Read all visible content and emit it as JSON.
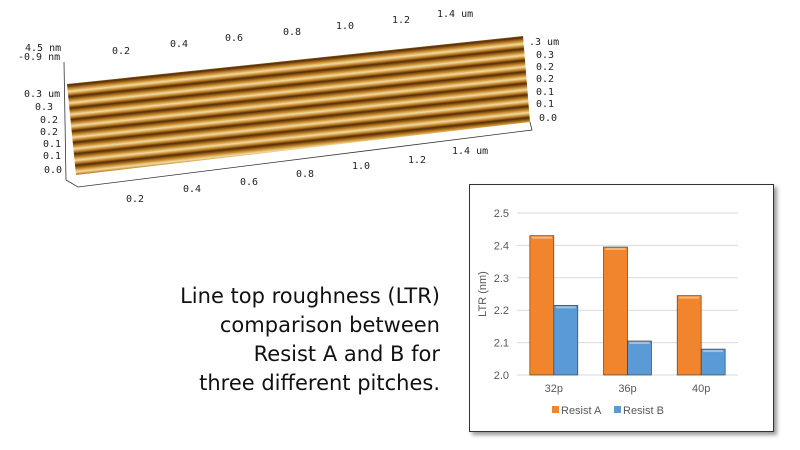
{
  "afm": {
    "z_max": "4.5 nm",
    "z_min": "-0.9 nm",
    "top_x_ticks": [
      "0.2",
      "0.4",
      "0.6",
      "0.8",
      "1.0",
      "1.2",
      "1.4 um"
    ],
    "bottom_x_ticks": [
      "0.2",
      "0.4",
      "0.6",
      "0.8",
      "1.0",
      "1.2",
      "1.4 um"
    ],
    "left_y_ticks": [
      "0.3 um",
      "0.3",
      "0.2",
      "0.2",
      "0.1",
      "0.1",
      "0.0"
    ],
    "right_y_ticks": [
      ".3 um",
      "0.3",
      "0.2",
      "0.2",
      "0.1",
      "0.1",
      "0.0"
    ]
  },
  "caption": [
    "Line top roughness (LTR)",
    "comparison between",
    "Resist A and B for",
    "three different pitches."
  ],
  "chart_data": {
    "type": "bar",
    "title": "",
    "categories": [
      "32p",
      "36p",
      "40p"
    ],
    "series": [
      {
        "name": "Resist A",
        "values": [
          2.43,
          2.395,
          2.245
        ],
        "color": "#f0852d"
      },
      {
        "name": "Resist B",
        "values": [
          2.215,
          2.105,
          2.08
        ],
        "color": "#5b9bd5"
      }
    ],
    "xlabel": "",
    "ylabel": "LTR (nm)",
    "ylim": [
      2.0,
      2.5
    ],
    "yticks": [
      "2.0",
      "2.1",
      "2.2",
      "2.3",
      "2.4",
      "2.5"
    ],
    "grid": true,
    "legend": "bottom"
  }
}
